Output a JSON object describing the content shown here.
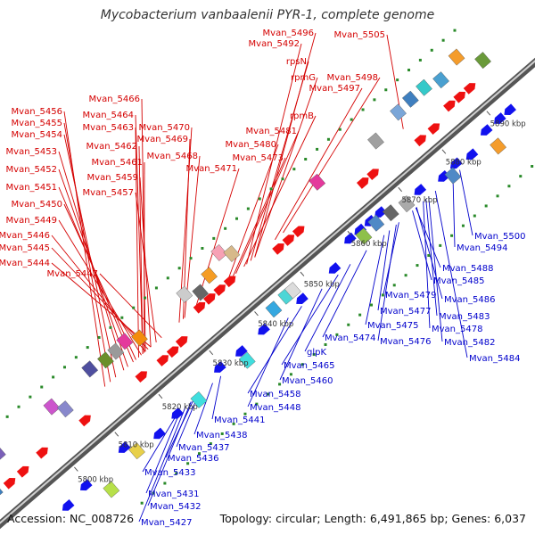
{
  "title": "Mycobacterium vanbaalenii PYR-1, complete genome",
  "footer": {
    "accession": "Accession: NC_008726",
    "summary": "Topology: circular; Length: 6,491,865 bp; Genes: 6,037"
  },
  "colors": {
    "forward_label": "#d40000",
    "reverse_label": "#0000cc",
    "forward_gene": "#ee1111",
    "reverse_gene": "#1111ee",
    "backbone": "#808080",
    "gc_dots": "#2a8a2a"
  },
  "ticks": [
    "5800 kbp",
    "5810 kbp",
    "5820 kbp",
    "5830 kbp",
    "5840 kbp",
    "5850 kbp",
    "5860 kbp",
    "5870 kbp",
    "5880 kbp",
    "5890 kbp"
  ],
  "forward_labels": [
    "Mvan_5496",
    "Mvan_5505",
    "Mvan_5492",
    "rpsN",
    "rpmG",
    "Mvan_5498",
    "Mvan_5497",
    "rpmB",
    "Mvan_5466",
    "Mvan_5456",
    "Mvan_5464",
    "Mvan_5455",
    "Mvan_5463",
    "Mvan_5470",
    "Mvan_5454",
    "Mvan_5469",
    "Mvan_5481",
    "Mvan_5462",
    "Mvan_5480",
    "Mvan_5453",
    "Mvan_5461",
    "Mvan_5468",
    "Mvan_5473",
    "Mvan_5452",
    "Mvan_5459",
    "Mvan_5471",
    "Mvan_5451",
    "Mvan_5457",
    "Mvan_5450",
    "Mvan_5449",
    "Mvan_5446",
    "Mvan_5445",
    "Mvan_5444",
    "Mvan_5447"
  ],
  "reverse_labels": [
    "Mvan_5500",
    "Mvan_5494",
    "Mvan_5488",
    "Mvan_5485",
    "Mvan_5479",
    "Mvan_5486",
    "Mvan_5477",
    "Mvan_5483",
    "Mvan_5475",
    "Mvan_5478",
    "Mvan_5474",
    "Mvan_5476",
    "Mvan_5482",
    "glpK",
    "Mvan_5484",
    "Mvan_5465",
    "Mvan_5460",
    "Mvan_5458",
    "Mvan_5448",
    "Mvan_5441",
    "Mvan_5438",
    "Mvan_5437",
    "Mvan_5436",
    "Mvan_5433",
    "Mvan_5431",
    "Mvan_5432",
    "Mvan_5427"
  ]
}
